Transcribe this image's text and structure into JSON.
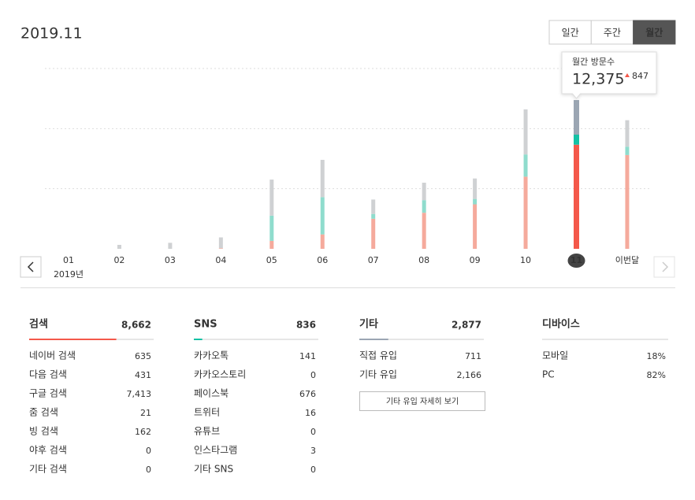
{
  "title": "2019.11",
  "tabs": {
    "items": [
      "일간",
      "주간",
      "월간"
    ],
    "active": 2
  },
  "chart_data": {
    "type": "bar",
    "stacked": true,
    "categories": [
      "01",
      "02",
      "03",
      "04",
      "05",
      "06",
      "07",
      "08",
      "09",
      "10",
      "11",
      "이번달"
    ],
    "year_label": "2019년",
    "highlight_index": 10,
    "ylim": [
      0,
      15000
    ],
    "yticks": [
      5000,
      10000,
      15000
    ],
    "grid": true,
    "series": [
      {
        "color": "#f5aa9c",
        "highlight_color": "#f4584a",
        "values": [
          0,
          0,
          0,
          50,
          660,
          1200,
          2500,
          3000,
          3700,
          6000,
          8662,
          7800
        ]
      },
      {
        "color": "#8fdccd",
        "highlight_color": "#14c1a5",
        "values": [
          0,
          0,
          0,
          0,
          2100,
          3100,
          400,
          1050,
          450,
          1850,
          836,
          700
        ]
      },
      {
        "color": "#cfd1d3",
        "highlight_color": "#9ba6b3",
        "values": [
          0,
          330,
          500,
          900,
          3000,
          3100,
          1200,
          1450,
          1700,
          3750,
          2877,
          2200
        ]
      }
    ],
    "tooltip": {
      "title": "월간 방문수",
      "value": 12375,
      "value_label": "12,375",
      "change": 847
    }
  },
  "panels": [
    {
      "title": "검색",
      "total": "8,662",
      "rows": [
        {
          "label": "네이버 검색",
          "value": "635"
        },
        {
          "label": "다음 검색",
          "value": "431"
        },
        {
          "label": "구글 검색",
          "value": "7,413"
        },
        {
          "label": "줌 검색",
          "value": "21"
        },
        {
          "label": "빙 검색",
          "value": "162"
        },
        {
          "label": "야후 검색",
          "value": "0"
        },
        {
          "label": "기타 검색",
          "value": "0"
        }
      ]
    },
    {
      "title": "SNS",
      "total": "836",
      "rows": [
        {
          "label": "카카오톡",
          "value": "141"
        },
        {
          "label": "카카오스토리",
          "value": "0"
        },
        {
          "label": "페이스북",
          "value": "676"
        },
        {
          "label": "트위터",
          "value": "16"
        },
        {
          "label": "유튜브",
          "value": "0"
        },
        {
          "label": "인스타그램",
          "value": "3"
        },
        {
          "label": "기타 SNS",
          "value": "0"
        }
      ]
    },
    {
      "title": "기타",
      "total": "2,877",
      "rows": [
        {
          "label": "직접 유입",
          "value": "711"
        },
        {
          "label": "기타 유입",
          "value": "2,166"
        }
      ],
      "button": "기타 유입 자세히 보기"
    },
    {
      "title": "디바이스",
      "rows": [
        {
          "label": "모바일",
          "value": "18%"
        },
        {
          "label": "PC",
          "value": "82%"
        }
      ]
    }
  ]
}
